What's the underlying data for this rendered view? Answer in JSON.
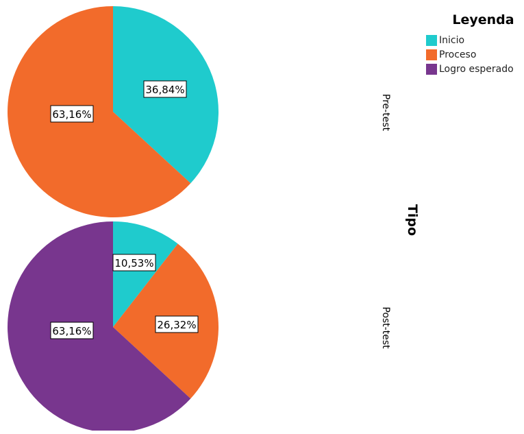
{
  "chart_data": {
    "type": "pie",
    "legend": {
      "title": "Leyenda",
      "placement": "top-right",
      "items": [
        {
          "label": "Inicio",
          "color": "#1fcbcd"
        },
        {
          "label": "Proceso",
          "color": "#f26b2b"
        },
        {
          "label": "Logro esperado",
          "color": "#78368e"
        }
      ]
    },
    "panel_axis_label": "Tipo",
    "panels": [
      {
        "label": "Pre-test",
        "slices": [
          {
            "category": "Inicio",
            "value": 36.84,
            "label": "36,84%"
          },
          {
            "category": "Proceso",
            "value": 63.16,
            "label": "63,16%"
          }
        ]
      },
      {
        "label": "Post-test",
        "slices": [
          {
            "category": "Inicio",
            "value": 10.53,
            "label": "10,53%"
          },
          {
            "category": "Proceso",
            "value": 26.32,
            "label": "26,32%"
          },
          {
            "category": "Logro esperado",
            "value": 63.16,
            "label": "63,16%"
          }
        ]
      }
    ]
  }
}
